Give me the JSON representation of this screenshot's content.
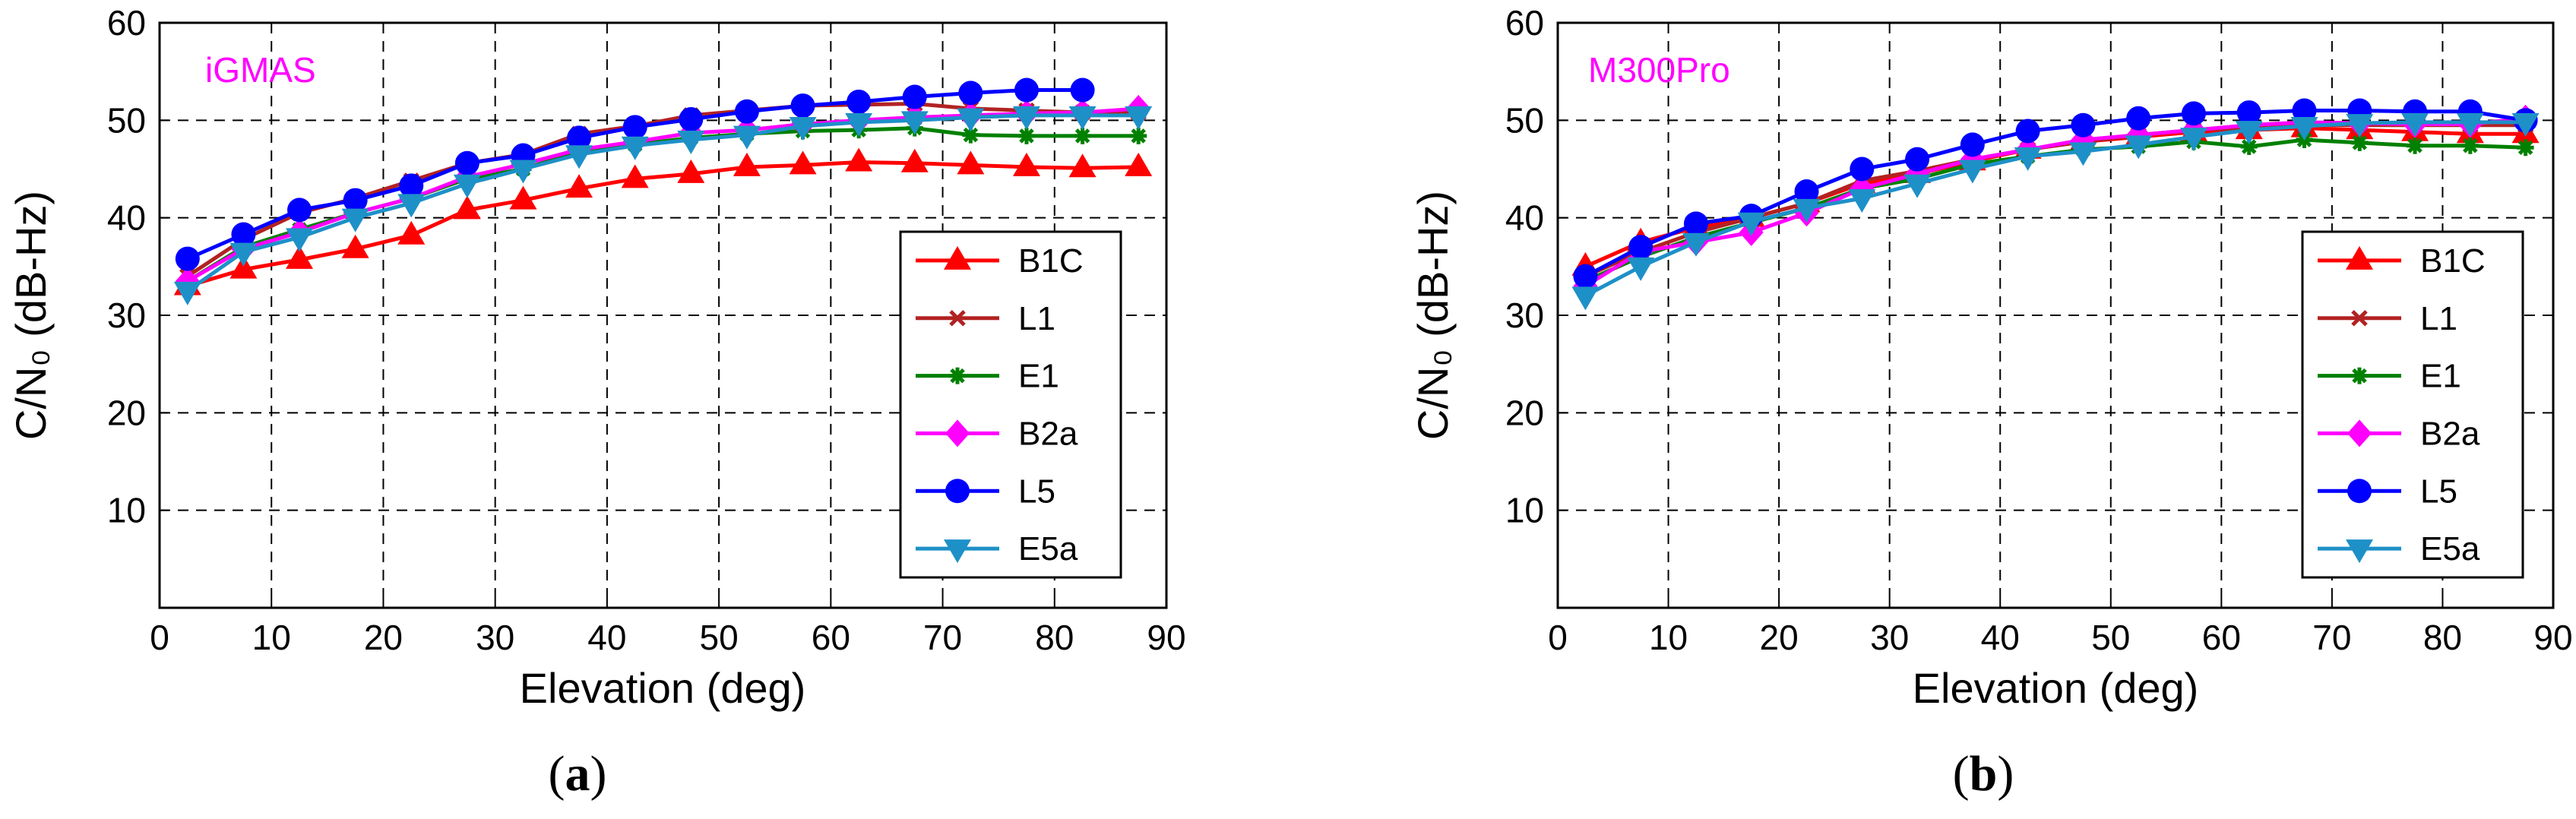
{
  "chart_data": [
    {
      "type": "line",
      "panel_label": "(a)",
      "annotation": "iGMAS",
      "annotation_color": "#ff00ff",
      "xlabel": "Elevation (deg)",
      "ylabel": "C/N₀ (dB-Hz)",
      "xlim": [
        0,
        90
      ],
      "ylim": [
        0,
        60
      ],
      "xticks": [
        0,
        10,
        20,
        30,
        40,
        50,
        60,
        70,
        80,
        90
      ],
      "yticks": [
        10,
        20,
        30,
        40,
        50,
        60
      ],
      "grid": true,
      "legend_position": "lower-right",
      "series": [
        {
          "name": "B1C",
          "color": "#ff0000",
          "marker": "triangle-up",
          "x": [
            2.5,
            7.5,
            12.5,
            17.5,
            22.5,
            27.5,
            32.5,
            37.5,
            42.5,
            47.5,
            52.5,
            57.5,
            62.5,
            67.5,
            72.5,
            77.5,
            82.5,
            87.5
          ],
          "values": [
            33,
            34.7,
            35.7,
            36.8,
            38.2,
            40.8,
            41.8,
            43,
            44,
            44.5,
            45.2,
            45.4,
            45.7,
            45.6,
            45.4,
            45.2,
            45.1,
            45.2
          ]
        },
        {
          "name": "L1",
          "color": "#b22222",
          "marker": "x",
          "x": [
            2.5,
            7.5,
            12.5,
            17.5,
            22.5,
            27.5,
            32.5,
            37.5,
            42.5,
            47.5,
            52.5,
            57.5,
            62.5,
            67.5,
            72.5,
            77.5,
            82.5,
            87.5
          ],
          "values": [
            34,
            37.8,
            40.5,
            42,
            43.8,
            45.6,
            46.5,
            48.6,
            49.4,
            50.5,
            51,
            51.5,
            51.6,
            51.7,
            51.2,
            51,
            50.8,
            50.8
          ]
        },
        {
          "name": "E1",
          "color": "#008000",
          "marker": "asterisk",
          "x": [
            2.5,
            7.5,
            12.5,
            17.5,
            22.5,
            27.5,
            32.5,
            37.5,
            42.5,
            47.5,
            52.5,
            57.5,
            62.5,
            67.5,
            72.5,
            77.5,
            82.5,
            87.5
          ],
          "values": [
            33.5,
            37,
            38.8,
            40.5,
            42,
            44,
            45,
            46.8,
            47.5,
            48.2,
            48.6,
            48.9,
            49,
            49.2,
            48.5,
            48.4,
            48.4,
            48.4
          ]
        },
        {
          "name": "B2a",
          "color": "#ff00ff",
          "marker": "diamond",
          "x": [
            2.5,
            7.5,
            12.5,
            17.5,
            22.5,
            27.5,
            32.5,
            37.5,
            42.5,
            47.5,
            52.5,
            57.5,
            62.5,
            67.5,
            72.5,
            77.5,
            82.5,
            87.5
          ],
          "values": [
            33.5,
            36.8,
            38.5,
            40.5,
            42,
            44.2,
            45.5,
            47,
            47.8,
            48.7,
            49,
            49.6,
            50,
            50.3,
            50.5,
            50.7,
            50.8,
            51.2
          ]
        },
        {
          "name": "L5",
          "color": "#0000ff",
          "marker": "circle",
          "x": [
            2.5,
            7.5,
            12.5,
            17.5,
            22.5,
            27.5,
            32.5,
            37.5,
            42.5,
            47.5,
            52.5,
            57.5,
            62.5,
            67.5,
            72.5,
            77.5,
            82.5
          ],
          "values": [
            35.8,
            38.3,
            40.8,
            41.8,
            43.3,
            45.6,
            46.4,
            48.2,
            49.3,
            50.1,
            50.9,
            51.5,
            51.9,
            52.4,
            52.8,
            53.1,
            53.1
          ]
        },
        {
          "name": "E5a",
          "color": "#1e90c8",
          "marker": "triangle-down",
          "x": [
            2.5,
            7.5,
            12.5,
            17.5,
            22.5,
            27.5,
            32.5,
            37.5,
            42.5,
            47.5,
            52.5,
            57.5,
            62.5,
            67.5,
            72.5,
            77.5,
            82.5,
            87.5
          ],
          "values": [
            32.5,
            36.5,
            38,
            40,
            41.5,
            43.5,
            45,
            46.5,
            47.4,
            48,
            48.5,
            49.4,
            49.8,
            50,
            50.3,
            50.5,
            50.5,
            50.5
          ]
        }
      ]
    },
    {
      "type": "line",
      "panel_label": "(b)",
      "annotation": "M300Pro",
      "annotation_color": "#ff00ff",
      "xlabel": "Elevation (deg)",
      "ylabel": "C/N₀ (dB-Hz)",
      "xlim": [
        0,
        90
      ],
      "ylim": [
        0,
        60
      ],
      "xticks": [
        0,
        10,
        20,
        30,
        40,
        50,
        60,
        70,
        80,
        90
      ],
      "yticks": [
        10,
        20,
        30,
        40,
        50,
        60
      ],
      "grid": true,
      "legend_position": "lower-right",
      "series": [
        {
          "name": "B1C",
          "color": "#ff0000",
          "marker": "triangle-up",
          "x": [
            2.5,
            7.5,
            12.5,
            17.5,
            22.5,
            27.5,
            32.5,
            37.5,
            42.5,
            47.5,
            52.5,
            57.5,
            62.5,
            67.5,
            72.5,
            77.5,
            82.5,
            87.5
          ],
          "values": [
            35,
            37.5,
            39,
            40,
            41.5,
            43.5,
            44.5,
            45.8,
            47,
            47.8,
            48.3,
            48.8,
            49,
            49.2,
            49,
            48.8,
            48.6,
            48.6
          ]
        },
        {
          "name": "L1",
          "color": "#b22222",
          "marker": "x",
          "x": [
            2.5,
            7.5,
            12.5,
            17.5,
            22.5,
            27.5,
            32.5,
            37.5,
            42.5,
            47.5,
            52.5,
            57.5,
            62.5,
            67.5,
            72.5,
            77.5,
            82.5,
            87.5
          ],
          "values": [
            34,
            36.5,
            38.5,
            40,
            41.5,
            43.8,
            44.8,
            46,
            47,
            47.8,
            48.5,
            49,
            49.2,
            49.5,
            49.5,
            49.5,
            49.5,
            49.5
          ]
        },
        {
          "name": "E1",
          "color": "#008000",
          "marker": "asterisk",
          "x": [
            2.5,
            7.5,
            12.5,
            17.5,
            22.5,
            27.5,
            32.5,
            37.5,
            42.5,
            47.5,
            52.5,
            57.5,
            62.5,
            67.5,
            72.5,
            77.5,
            82.5,
            87.5
          ],
          "values": [
            33.5,
            36,
            38,
            39.5,
            41,
            43,
            44,
            45.5,
            46.3,
            47,
            47.3,
            47.8,
            47.3,
            48,
            47.7,
            47.4,
            47.4,
            47.2
          ]
        },
        {
          "name": "B2a",
          "color": "#ff00ff",
          "marker": "diamond",
          "x": [
            2.5,
            7.5,
            12.5,
            17.5,
            22.5,
            27.5,
            32.5,
            37.5,
            42.5,
            47.5,
            52.5,
            57.5,
            62.5,
            67.5,
            72.5,
            77.5,
            82.5,
            87.5
          ],
          "values": [
            33,
            36.5,
            37.5,
            38.5,
            40.5,
            43,
            44.5,
            46,
            47,
            48,
            48.5,
            49,
            49.5,
            49.8,
            49.7,
            49.6,
            49.6,
            50.2
          ]
        },
        {
          "name": "L5",
          "color": "#0000ff",
          "marker": "circle",
          "x": [
            2.5,
            7.5,
            12.5,
            17.5,
            22.5,
            27.5,
            32.5,
            37.5,
            42.5,
            47.5,
            52.5,
            57.5,
            62.5,
            67.5,
            72.5,
            77.5,
            82.5,
            87.5
          ],
          "values": [
            34,
            37,
            39.4,
            40.2,
            42.7,
            45,
            46,
            47.5,
            48.9,
            49.5,
            50.2,
            50.7,
            50.8,
            51,
            51,
            50.9,
            50.9,
            50
          ]
        },
        {
          "name": "E5a",
          "color": "#1e90c8",
          "marker": "triangle-down",
          "x": [
            2.5,
            7.5,
            12.5,
            17.5,
            22.5,
            27.5,
            32.5,
            37.5,
            42.5,
            47.5,
            52.5,
            57.5,
            62.5,
            67.5,
            72.5,
            77.5,
            82.5,
            87.5
          ],
          "values": [
            32,
            35,
            37.5,
            39.6,
            41,
            42,
            43.5,
            45,
            46.3,
            46.8,
            47.5,
            48.3,
            49,
            49.4,
            49.7,
            49.8,
            49.8,
            49.8
          ]
        }
      ]
    }
  ]
}
